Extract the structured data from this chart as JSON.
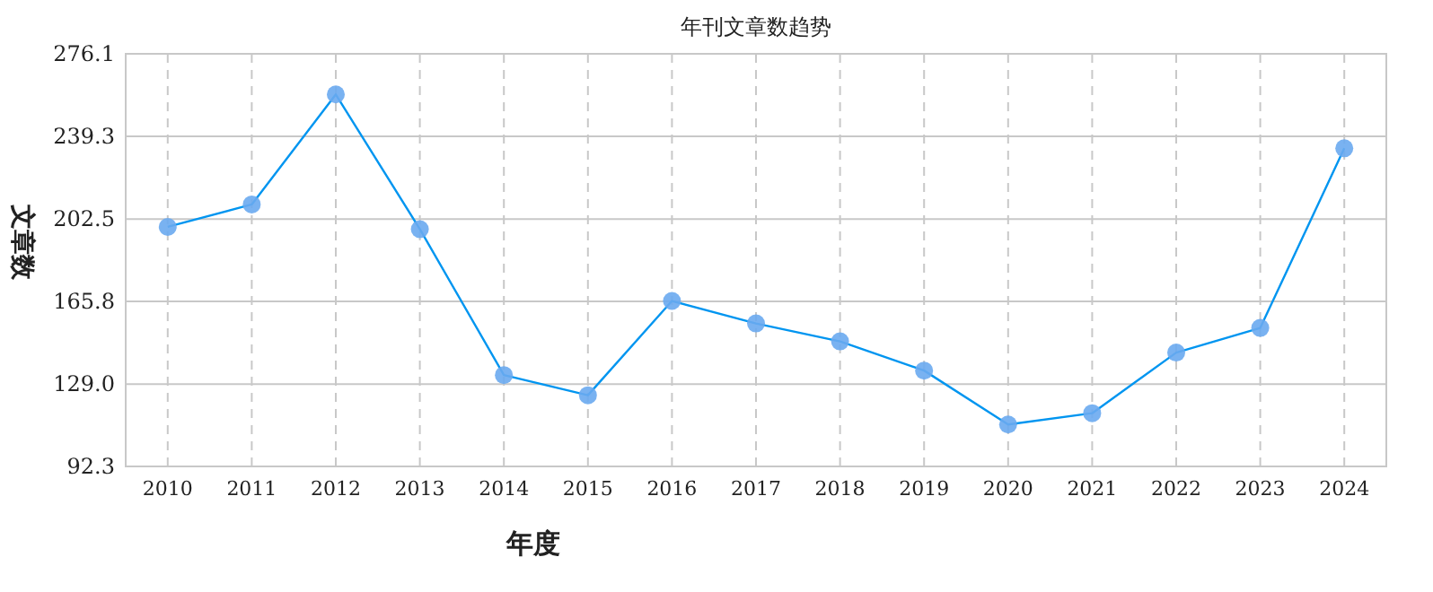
{
  "chart_data": {
    "type": "line",
    "title": "年刊文章数趋势",
    "xlabel": "年度",
    "ylabel": "文章数",
    "categories": [
      "2010",
      "2011",
      "2012",
      "2013",
      "2014",
      "2015",
      "2016",
      "2017",
      "2018",
      "2019",
      "2020",
      "2021",
      "2022",
      "2023",
      "2024"
    ],
    "series": [
      {
        "color": "#0095f0",
        "values": [
          199,
          209,
          258,
          198,
          133,
          124,
          166,
          156,
          148,
          135,
          111,
          116,
          143,
          154,
          234
        ]
      }
    ],
    "ylim": [
      92.3,
      276.1
    ],
    "yticks": [
      92.3,
      {
        "value": 129,
        "label": "129.0"
      },
      165.8,
      202.5,
      239.3,
      276.1
    ],
    "grid": true,
    "marker": "circle",
    "line_style": "solid"
  }
}
